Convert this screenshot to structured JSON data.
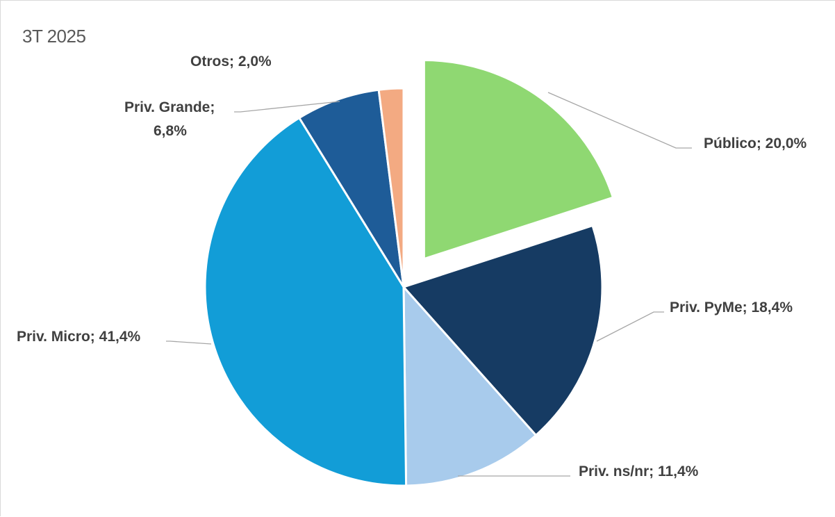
{
  "chart_data": {
    "type": "pie",
    "title": "3T 2025",
    "slices": [
      {
        "name": "Público",
        "value": 20.0,
        "label": "Público; 20,0%",
        "color": "#8fd872",
        "exploded": true
      },
      {
        "name": "Priv. PyMe",
        "value": 18.4,
        "label": "Priv. PyMe; 18,4%",
        "color": "#163b63",
        "exploded": false
      },
      {
        "name": "Priv. ns/nr",
        "value": 11.4,
        "label": "Priv. ns/nr; 11,4%",
        "color": "#a8cbec",
        "exploded": false
      },
      {
        "name": "Priv. Micro",
        "value": 41.4,
        "label": "Priv. Micro; 41,4%",
        "color": "#129dd7",
        "exploded": false
      },
      {
        "name": "Priv. Grande",
        "value": 6.8,
        "label_lines": [
          "Priv. Grande;",
          "6,8%"
        ],
        "color": "#1e5c98",
        "exploded": false
      },
      {
        "name": "Otros",
        "value": 2.0,
        "label": "Otros; 2,0%",
        "color": "#f3aa82",
        "exploded": false
      }
    ]
  }
}
